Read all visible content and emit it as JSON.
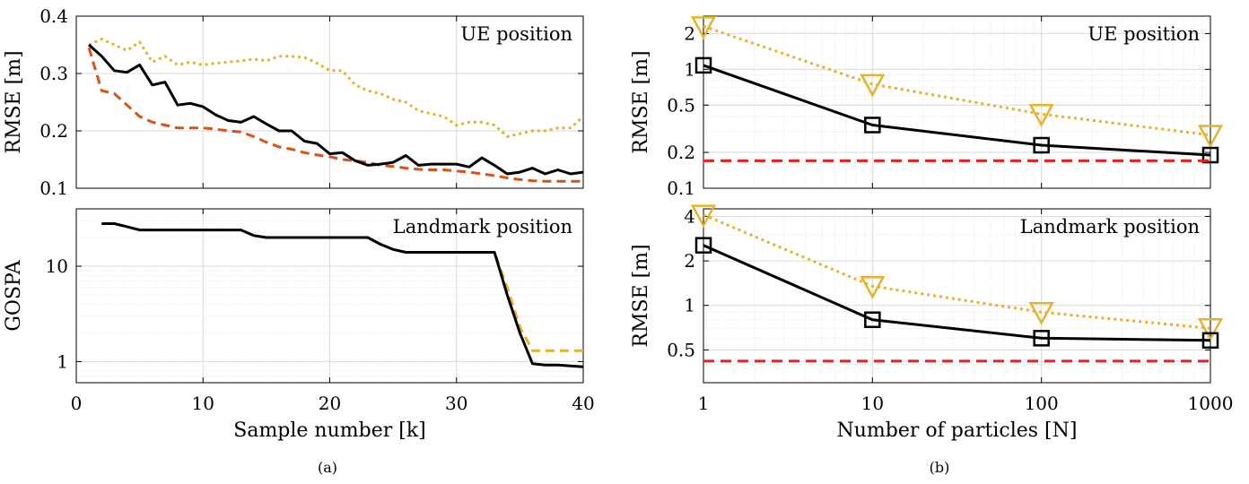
{
  "captions": {
    "a": "(a)",
    "b": "(b)"
  },
  "colors": {
    "black": "#000000",
    "orange_dashed": "#d95319",
    "yellow": "#e8b12c",
    "red": "#e8201d",
    "grid": "#d9d9d9"
  },
  "chart_data": [
    {
      "id": "a-top",
      "type": "line",
      "annotation": "UE position",
      "ylabel": "RMSE [m]",
      "xlabel": "",
      "xlim": [
        0,
        40
      ],
      "ylim": [
        0.1,
        0.4
      ],
      "xticks": [
        0,
        10,
        20,
        30,
        40
      ],
      "xtick_labels": [
        "",
        "",
        "",
        "",
        ""
      ],
      "yticks": [
        0.1,
        0.2,
        0.3,
        0.4
      ],
      "ytick_labels": [
        "0.1",
        "0.2",
        "0.3",
        "0.4"
      ],
      "grid": true,
      "series": [
        {
          "style": "yellow-dotted",
          "x": [
            1,
            2,
            3,
            4,
            5,
            6,
            7,
            8,
            9,
            10,
            11,
            12,
            13,
            14,
            15,
            16,
            17,
            18,
            19,
            20,
            21,
            22,
            23,
            24,
            25,
            26,
            27,
            28,
            29,
            30,
            31,
            32,
            33,
            34,
            35,
            36,
            37,
            38,
            39,
            40
          ],
          "y": [
            0.35,
            0.36,
            0.35,
            0.34,
            0.355,
            0.32,
            0.33,
            0.315,
            0.32,
            0.315,
            0.318,
            0.32,
            0.322,
            0.325,
            0.322,
            0.33,
            0.33,
            0.328,
            0.318,
            0.305,
            0.305,
            0.28,
            0.27,
            0.265,
            0.255,
            0.25,
            0.235,
            0.23,
            0.225,
            0.21,
            0.215,
            0.215,
            0.21,
            0.19,
            0.195,
            0.2,
            0.2,
            0.205,
            0.205,
            0.225
          ]
        },
        {
          "style": "orange-dashed",
          "x": [
            1,
            2,
            3,
            4,
            5,
            6,
            7,
            8,
            9,
            10,
            11,
            12,
            13,
            14,
            15,
            16,
            17,
            18,
            19,
            20,
            21,
            22,
            23,
            24,
            25,
            26,
            27,
            28,
            29,
            30,
            31,
            32,
            33,
            34,
            35,
            36,
            37,
            38,
            39,
            40
          ],
          "y": [
            0.345,
            0.27,
            0.265,
            0.245,
            0.225,
            0.215,
            0.21,
            0.205,
            0.205,
            0.205,
            0.203,
            0.2,
            0.198,
            0.19,
            0.18,
            0.172,
            0.168,
            0.162,
            0.158,
            0.155,
            0.15,
            0.148,
            0.145,
            0.14,
            0.138,
            0.135,
            0.133,
            0.132,
            0.132,
            0.13,
            0.128,
            0.125,
            0.122,
            0.118,
            0.115,
            0.113,
            0.112,
            0.112,
            0.112,
            0.112
          ]
        },
        {
          "style": "black-solid",
          "x": [
            1,
            2,
            3,
            4,
            5,
            6,
            7,
            8,
            9,
            10,
            11,
            12,
            13,
            14,
            15,
            16,
            17,
            18,
            19,
            20,
            21,
            22,
            23,
            24,
            25,
            26,
            27,
            28,
            29,
            30,
            31,
            32,
            33,
            34,
            35,
            36,
            37,
            38,
            39,
            40
          ],
          "y": [
            0.35,
            0.33,
            0.305,
            0.302,
            0.315,
            0.28,
            0.285,
            0.245,
            0.248,
            0.242,
            0.228,
            0.218,
            0.215,
            0.225,
            0.212,
            0.2,
            0.2,
            0.182,
            0.178,
            0.16,
            0.162,
            0.148,
            0.14,
            0.142,
            0.145,
            0.157,
            0.14,
            0.142,
            0.142,
            0.142,
            0.137,
            0.153,
            0.14,
            0.125,
            0.128,
            0.135,
            0.125,
            0.132,
            0.125,
            0.128
          ]
        }
      ]
    },
    {
      "id": "a-bottom",
      "type": "line",
      "annotation": "Landmark position",
      "ylabel": "GOSPA",
      "xlabel": "Sample number [k]",
      "xlim": [
        0,
        40
      ],
      "ylim": [
        0.6,
        40
      ],
      "yscale": "log",
      "xticks": [
        0,
        10,
        20,
        30,
        40
      ],
      "xtick_labels": [
        "0",
        "10",
        "20",
        "30",
        "40"
      ],
      "yticks": [
        1,
        10
      ],
      "ytick_labels": [
        "1",
        "10"
      ],
      "grid": true,
      "series": [
        {
          "style": "yellow-dashed",
          "x": [
            2,
            3,
            4,
            5,
            6,
            7,
            8,
            9,
            10,
            11,
            12,
            13,
            14,
            15,
            16,
            17,
            18,
            19,
            20,
            21,
            22,
            23,
            24,
            25,
            26,
            27,
            28,
            29,
            30,
            31,
            32,
            33,
            34,
            35,
            36,
            37,
            38,
            39,
            40
          ],
          "y": [
            28,
            28,
            26,
            24,
            24,
            24,
            24,
            24,
            24,
            24,
            24,
            24,
            21,
            20,
            20,
            20,
            20,
            20,
            20,
            20,
            20,
            20,
            17,
            15,
            14,
            14,
            14,
            14,
            14,
            14,
            14,
            14,
            6,
            2.3,
            1.3,
            1.3,
            1.3,
            1.3,
            1.3
          ]
        },
        {
          "style": "black-solid",
          "x": [
            2,
            3,
            4,
            5,
            6,
            7,
            8,
            9,
            10,
            11,
            12,
            13,
            14,
            15,
            16,
            17,
            18,
            19,
            20,
            21,
            22,
            23,
            24,
            25,
            26,
            27,
            28,
            29,
            30,
            31,
            32,
            33,
            34,
            35,
            36,
            37,
            38,
            39,
            40
          ],
          "y": [
            28,
            28,
            26,
            24,
            24,
            24,
            24,
            24,
            24,
            24,
            24,
            24,
            21,
            20,
            20,
            20,
            20,
            20,
            20,
            20,
            20,
            20,
            17,
            15,
            14,
            14,
            14,
            14,
            14,
            14,
            14,
            14,
            5,
            2,
            0.95,
            0.92,
            0.92,
            0.9,
            0.88
          ]
        }
      ]
    },
    {
      "id": "b-top",
      "type": "line",
      "annotation": "UE position",
      "ylabel": "RMSE [m]",
      "xlabel": "",
      "xscale": "log",
      "yscale": "log",
      "xlim": [
        1,
        1000
      ],
      "ylim": [
        0.1,
        2.8
      ],
      "xticks": [
        1,
        10,
        100,
        1000
      ],
      "xtick_labels": [
        "",
        "",
        "",
        ""
      ],
      "yticks": [
        0.1,
        0.2,
        0.5,
        1,
        2
      ],
      "ytick_labels": [
        "0.1",
        "0.2",
        "0.5",
        "1",
        "2"
      ],
      "grid": true,
      "series": [
        {
          "style": "yellow-dotted-triangle",
          "x": [
            1,
            10,
            100,
            1000
          ],
          "y": [
            2.3,
            0.75,
            0.42,
            0.28
          ]
        },
        {
          "style": "black-solid-square",
          "x": [
            1,
            10,
            100,
            1000
          ],
          "y": [
            1.08,
            0.34,
            0.23,
            0.19
          ]
        },
        {
          "style": "red-dashed",
          "x": [
            1,
            1000
          ],
          "y": [
            0.17,
            0.17
          ]
        }
      ]
    },
    {
      "id": "b-bottom",
      "type": "line",
      "annotation": "Landmark position",
      "ylabel": "RMSE [m]",
      "xlabel": "Number of particles [N]",
      "xscale": "log",
      "yscale": "log",
      "xlim": [
        1,
        1000
      ],
      "ylim": [
        0.3,
        4.5
      ],
      "xticks": [
        1,
        10,
        100,
        1000
      ],
      "xtick_labels": [
        "1",
        "10",
        "100",
        "1000"
      ],
      "yticks": [
        0.5,
        1,
        2,
        4
      ],
      "ytick_labels": [
        "0.5",
        "1",
        "2",
        "4"
      ],
      "grid": true,
      "series": [
        {
          "style": "yellow-dotted-triangle",
          "x": [
            1,
            10,
            100,
            1000
          ],
          "y": [
            4.1,
            1.35,
            0.9,
            0.7
          ]
        },
        {
          "style": "black-solid-square",
          "x": [
            1,
            10,
            100,
            1000
          ],
          "y": [
            2.55,
            0.8,
            0.6,
            0.58
          ]
        },
        {
          "style": "red-dashed",
          "x": [
            1,
            1000
          ],
          "y": [
            0.42,
            0.42
          ]
        }
      ]
    }
  ]
}
